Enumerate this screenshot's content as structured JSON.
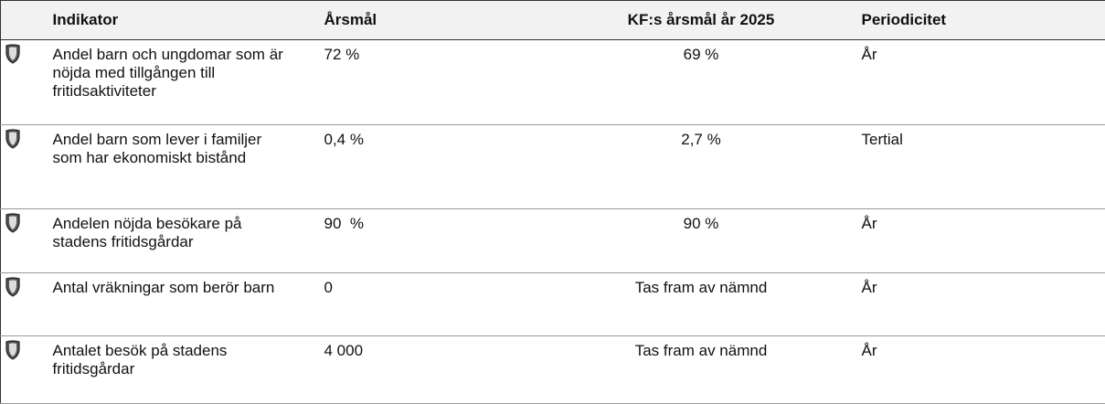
{
  "table": {
    "columns": [
      "Indikator",
      "Årsmål",
      "KF:s årsmål år 2025",
      "Periodicitet"
    ],
    "rows": [
      [
        "Andel barn och ungdomar som är nöjda med tillgången till fritidsaktiviteter",
        "72 %",
        "69 %",
        "År"
      ],
      [
        "Andel barn som lever i familjer som har ekonomiskt bistånd",
        "0,4 %",
        "2,7 %",
        "Tertial"
      ],
      [
        "Andelen nöjda besökare på stadens fritidsgårdar",
        "90  %",
        "90 %",
        "År"
      ],
      [
        "Antal vräkningar som berör barn",
        "0",
        "Tas fram av nämnd",
        "År"
      ],
      [
        "Antalet besök på stadens fritidsgårdar",
        "4 000",
        "Tas fram av nämnd",
        "År"
      ]
    ]
  }
}
